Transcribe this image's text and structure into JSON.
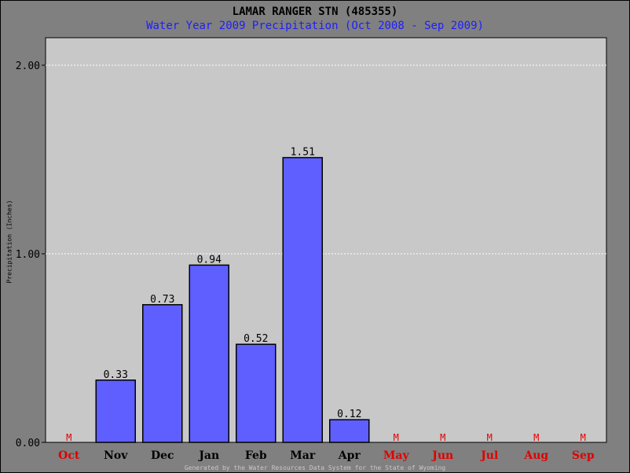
{
  "chart_data": {
    "type": "bar",
    "title": "LAMAR RANGER STN (485355)",
    "subtitle": "Water Year 2009 Precipitation (Oct 2008 - Sep 2009)",
    "ylabel": "Precipitation (Inches)",
    "categories": [
      "Oct",
      "Nov",
      "Dec",
      "Jan",
      "Feb",
      "Mar",
      "Apr",
      "May",
      "Jun",
      "Jul",
      "Aug",
      "Sep"
    ],
    "values": [
      null,
      0.33,
      0.73,
      0.94,
      0.52,
      1.51,
      0.12,
      null,
      null,
      null,
      null,
      null
    ],
    "value_labels": [
      "M",
      "0.33",
      "0.73",
      "0.94",
      "0.52",
      "1.51",
      "0.12",
      "M",
      "M",
      "M",
      "M",
      "M"
    ],
    "yticks": [
      "0.00",
      "1.00",
      "2.00"
    ],
    "ylim": [
      0,
      2.0
    ],
    "grid": true,
    "missing_marker": "M"
  },
  "footer": "Generated by the Water Resources Data System for the State of Wyoming",
  "colors": {
    "bar": "#5f5fff",
    "missing": "#e00000",
    "subtitle": "#1e1eff",
    "plot_bg": "#c8c8c8",
    "outer_bg": "#808080"
  }
}
